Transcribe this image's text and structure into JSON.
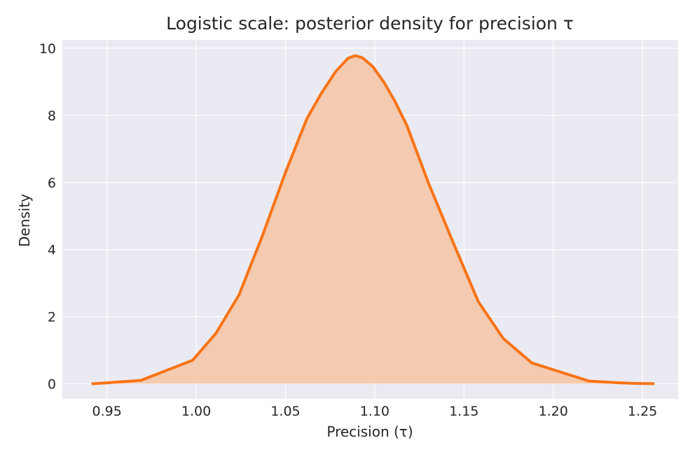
{
  "chart_data": {
    "type": "area",
    "title": "Logistic scale: posterior density for precision τ",
    "xlabel": "Precision (τ)",
    "ylabel": "Density",
    "xlim": [
      0.925,
      1.27
    ],
    "ylim": [
      -0.45,
      10.25
    ],
    "xticks": [
      0.95,
      1.0,
      1.05,
      1.1,
      1.15,
      1.2,
      1.25
    ],
    "xtick_labels": [
      "0.95",
      "1.00",
      "1.05",
      "1.10",
      "1.15",
      "1.20",
      "1.25"
    ],
    "yticks": [
      0,
      2,
      4,
      6,
      8,
      10
    ],
    "ytick_labels": [
      "0",
      "2",
      "4",
      "6",
      "8",
      "10"
    ],
    "grid": true,
    "series": [
      {
        "color": "#f97316",
        "fill": "#f6c4a5",
        "x": [
          0.942,
          0.948,
          0.969,
          0.998,
          1.011,
          1.024,
          1.037,
          1.05,
          1.062,
          1.07,
          1.078,
          1.085,
          1.089,
          1.093,
          1.099,
          1.105,
          1.111,
          1.118,
          1.13,
          1.144,
          1.158,
          1.172,
          1.188,
          1.204,
          1.22,
          1.236,
          1.246,
          1.256
        ],
        "y": [
          0.0,
          0.02,
          0.1,
          0.7,
          1.5,
          2.65,
          4.4,
          6.3,
          7.9,
          8.65,
          9.3,
          9.7,
          9.78,
          9.72,
          9.45,
          9.0,
          8.45,
          7.7,
          6.0,
          4.2,
          2.45,
          1.35,
          0.62,
          0.35,
          0.08,
          0.03,
          0.01,
          0.0
        ]
      }
    ]
  }
}
